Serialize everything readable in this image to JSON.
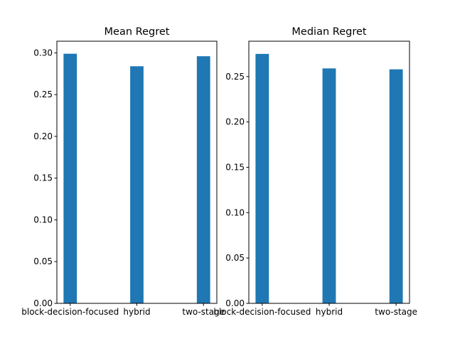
{
  "chart_data": [
    {
      "type": "bar",
      "title": "Mean Regret",
      "xlabel": "",
      "ylabel": "",
      "categories": [
        "block-decision-focused",
        "hybrid",
        "two-stage"
      ],
      "values": [
        0.299,
        0.284,
        0.296
      ],
      "ylim": [
        0,
        0.314
      ],
      "yticks": [
        "0.00",
        "0.05",
        "0.10",
        "0.15",
        "0.20",
        "0.25",
        "0.30"
      ],
      "color": "#1f77b4",
      "grid": false
    },
    {
      "type": "bar",
      "title": "Median Regret",
      "xlabel": "",
      "ylabel": "",
      "categories": [
        "block-decision-focused",
        "hybrid",
        "two-stage"
      ],
      "values": [
        0.275,
        0.259,
        0.258
      ],
      "ylim": [
        0,
        0.289
      ],
      "yticks": [
        "0.00",
        "0.05",
        "0.10",
        "0.15",
        "0.20",
        "0.25"
      ],
      "color": "#1f77b4",
      "grid": false
    }
  ]
}
